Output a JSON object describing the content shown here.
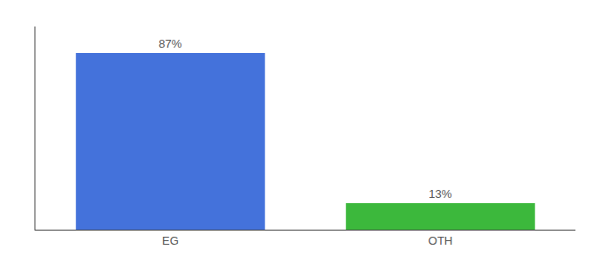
{
  "chart_data": {
    "type": "bar",
    "categories": [
      "EG",
      "OTH"
    ],
    "values": [
      87,
      13
    ],
    "value_labels": [
      "87%",
      "13%"
    ],
    "colors": [
      "#4472db",
      "#3cb83c"
    ],
    "ylim": [
      0,
      100
    ],
    "data_labels": true,
    "tick_labels": "x",
    "grid": false
  }
}
